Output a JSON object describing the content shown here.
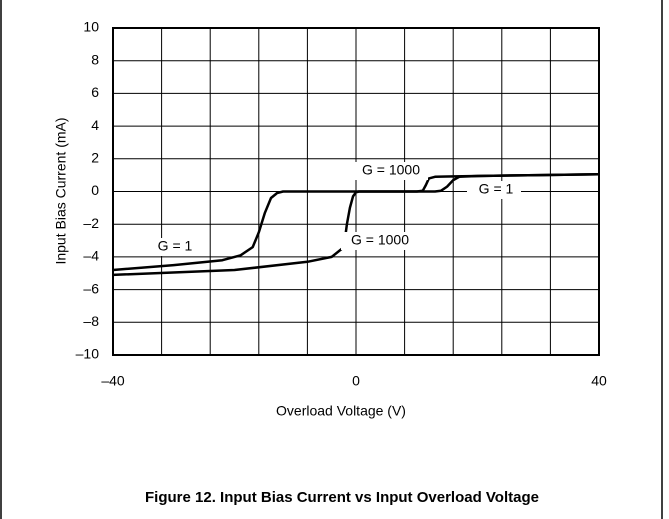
{
  "chart_data": {
    "type": "line",
    "caption": "Figure 12. Input Bias Current vs Input Overload Voltage",
    "xlabel": "Overload Voltage (V)",
    "ylabel": "Input Bias Current (mA)",
    "xlim": [
      -40,
      40
    ],
    "xticks": [
      {
        "value": -40,
        "label": "–40"
      },
      0,
      40
    ],
    "xgrid": [
      -40,
      -32,
      -24,
      -16,
      -8,
      0,
      8,
      16,
      24,
      32,
      40
    ],
    "ylim": [
      -10,
      10
    ],
    "yticks": [
      {
        "value": -10,
        "label": "–10"
      },
      {
        "value": -8,
        "label": "–8"
      },
      {
        "value": -6,
        "label": "–6"
      },
      {
        "value": -4,
        "label": "–4"
      },
      {
        "value": -2,
        "label": "–2"
      },
      0,
      2,
      4,
      6,
      8,
      10
    ],
    "grid": true,
    "series": [
      {
        "name": "G = 1",
        "color": "#000000",
        "x": [
          -40,
          -30,
          -22,
          -19,
          -17,
          -16,
          -15,
          -14,
          -13,
          -12,
          0,
          13,
          14,
          15,
          16,
          17,
          20,
          30,
          40
        ],
        "values": [
          -4.8,
          -4.5,
          -4.2,
          -3.9,
          -3.4,
          -2.5,
          -1.3,
          -0.4,
          -0.1,
          0,
          0,
          0,
          0.05,
          0.3,
          0.7,
          0.9,
          0.95,
          1.0,
          1.05
        ]
      },
      {
        "name": "G = 1000",
        "color": "#000000",
        "x": [
          -40,
          -20,
          -8,
          -4,
          -2,
          -1.5,
          -1,
          -0.5,
          0,
          0.5,
          10,
          11,
          11.5,
          12,
          13,
          15,
          20,
          30,
          40
        ],
        "values": [
          -5.1,
          -4.8,
          -4.3,
          -4.0,
          -3.4,
          -2,
          -1,
          -0.3,
          -0.05,
          0,
          0,
          0.05,
          0.4,
          0.8,
          0.9,
          0.92,
          0.95,
          1.0,
          1.05
        ]
      }
    ]
  }
}
